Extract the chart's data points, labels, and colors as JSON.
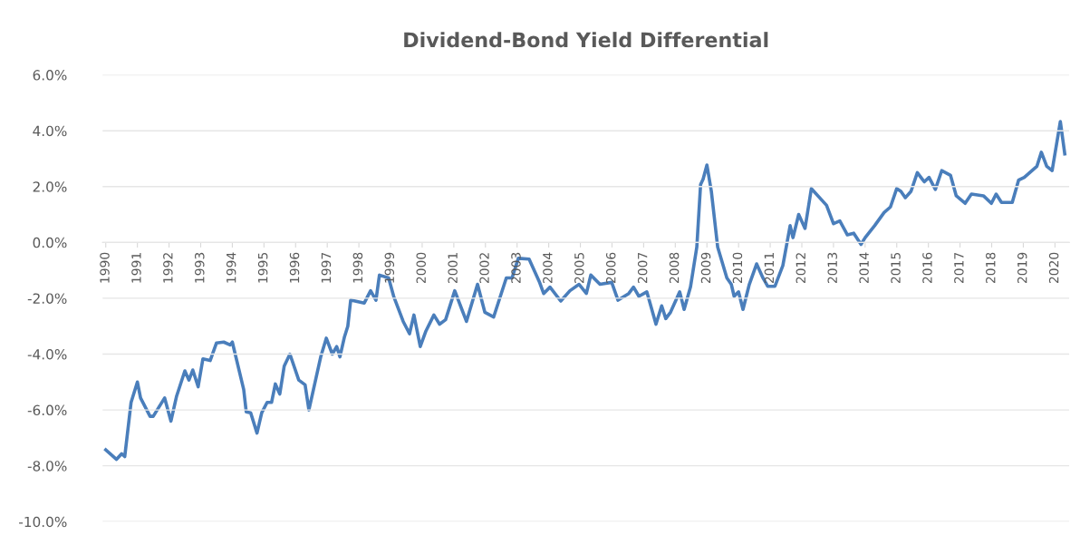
{
  "chart_data": {
    "type": "line",
    "title": "Dividend-Bond Yield Differential",
    "x": [
      1990.0,
      1990.34,
      1990.5,
      1990.6,
      1990.8,
      1991.0,
      1991.1,
      1991.4,
      1991.5,
      1991.86,
      1992.06,
      1992.24,
      1992.5,
      1992.63,
      1992.75,
      1992.92,
      1993.07,
      1993.3,
      1993.5,
      1993.73,
      1993.93,
      1994.0,
      1994.36,
      1994.44,
      1994.58,
      1994.78,
      1994.93,
      1995.1,
      1995.24,
      1995.36,
      1995.5,
      1995.64,
      1995.82,
      1996.1,
      1996.3,
      1996.42,
      1996.65,
      1996.8,
      1996.97,
      1997.16,
      1997.3,
      1997.4,
      1997.54,
      1997.65,
      1997.74,
      1997.88,
      1998.17,
      1998.37,
      1998.54,
      1998.65,
      1998.94,
      1999.1,
      1999.4,
      1999.6,
      1999.74,
      1999.94,
      2000.12,
      2000.37,
      2000.55,
      2000.74,
      2001.03,
      2001.4,
      2001.75,
      2001.98,
      2002.26,
      2002.66,
      2002.84,
      2003.04,
      2003.38,
      2003.7,
      2003.84,
      2004.04,
      2004.38,
      2004.67,
      2004.96,
      2005.19,
      2005.33,
      2005.62,
      2005.99,
      2006.19,
      2006.53,
      2006.68,
      2006.85,
      2007.1,
      2007.39,
      2007.57,
      2007.7,
      2007.85,
      2008.14,
      2008.28,
      2008.48,
      2008.68,
      2008.8,
      2008.88,
      2009.0,
      2009.14,
      2009.34,
      2009.63,
      2009.77,
      2009.86,
      2010.0,
      2010.14,
      2010.34,
      2010.57,
      2010.77,
      2010.92,
      2011.15,
      2011.4,
      2011.63,
      2011.72,
      2011.9,
      2012.1,
      2012.3,
      2012.78,
      2013.0,
      2013.2,
      2013.44,
      2013.64,
      2013.87,
      2014.0,
      2014.3,
      2014.6,
      2014.8,
      2015.0,
      2015.13,
      2015.27,
      2015.45,
      2015.65,
      2015.87,
      2016.02,
      2016.22,
      2016.42,
      2016.7,
      2016.88,
      2017.16,
      2017.36,
      2017.74,
      2017.99,
      2018.14,
      2018.31,
      2018.65,
      2018.85,
      2019.03,
      2019.43,
      2019.57,
      2019.74,
      2019.91,
      2020.17,
      2020.31
    ],
    "series": [
      {
        "color": "#4a7ebb",
        "values": [
          -7.43,
          -7.77,
          -7.57,
          -7.67,
          -5.73,
          -5.0,
          -5.57,
          -6.23,
          -6.23,
          -5.57,
          -6.4,
          -5.5,
          -4.6,
          -4.93,
          -4.57,
          -5.17,
          -4.17,
          -4.23,
          -3.6,
          -3.57,
          -3.67,
          -3.57,
          -5.27,
          -6.07,
          -6.1,
          -6.83,
          -6.1,
          -5.73,
          -5.73,
          -5.07,
          -5.43,
          -4.43,
          -4.0,
          -4.93,
          -5.1,
          -6.0,
          -4.83,
          -4.07,
          -3.43,
          -4.0,
          -3.73,
          -4.1,
          -3.4,
          -3.0,
          -2.07,
          -2.1,
          -2.17,
          -1.73,
          -2.07,
          -1.17,
          -1.27,
          -1.93,
          -2.83,
          -3.27,
          -2.6,
          -3.73,
          -3.17,
          -2.6,
          -2.93,
          -2.77,
          -1.73,
          -2.83,
          -1.5,
          -2.5,
          -2.67,
          -1.27,
          -1.27,
          -0.57,
          -0.6,
          -1.4,
          -1.83,
          -1.6,
          -2.1,
          -1.73,
          -1.5,
          -1.83,
          -1.17,
          -1.5,
          -1.43,
          -2.07,
          -1.83,
          -1.6,
          -1.93,
          -1.77,
          -2.93,
          -2.27,
          -2.73,
          -2.5,
          -1.77,
          -2.4,
          -1.6,
          -0.17,
          2.07,
          2.27,
          2.77,
          1.83,
          -0.17,
          -1.27,
          -1.5,
          -1.93,
          -1.77,
          -2.4,
          -1.5,
          -0.77,
          -1.27,
          -1.57,
          -1.57,
          -0.83,
          0.6,
          0.17,
          1.0,
          0.5,
          1.93,
          1.33,
          0.67,
          0.77,
          0.27,
          0.33,
          -0.07,
          0.17,
          0.6,
          1.07,
          1.27,
          1.93,
          1.83,
          1.6,
          1.83,
          2.5,
          2.17,
          2.33,
          1.9,
          2.57,
          2.4,
          1.67,
          1.4,
          1.73,
          1.67,
          1.4,
          1.73,
          1.43,
          1.43,
          2.23,
          2.33,
          2.73,
          3.23,
          2.73,
          2.57,
          4.33,
          3.17
        ]
      }
    ],
    "xlim": [
      1989.9,
      2020.45
    ],
    "xticks": [
      1990,
      1991,
      1992,
      1993,
      1994,
      1995,
      1996,
      1997,
      1998,
      1999,
      2000,
      2001,
      2002,
      2003,
      2004,
      2005,
      2006,
      2007,
      2008,
      2009,
      2010,
      2011,
      2012,
      2013,
      2014,
      2015,
      2016,
      2017,
      2018,
      2019,
      2020
    ],
    "ylim": [
      -10,
      6
    ],
    "yticks": [
      {
        "value": -10,
        "label": "-10.0%"
      },
      {
        "value": -8,
        "label": "-8.0%"
      },
      {
        "value": -6,
        "label": "-6.0%"
      },
      {
        "value": -4,
        "label": "-4.0%"
      },
      {
        "value": -2,
        "label": "-2.0%"
      },
      {
        "value": 0,
        "label": "0.0%"
      },
      {
        "value": 2,
        "label": "2.0%"
      },
      {
        "value": 4,
        "label": "4.0%"
      },
      {
        "value": 6,
        "label": "6.0%"
      }
    ],
    "grid": "y",
    "legend": false,
    "marker": "none",
    "line_style": "solid"
  }
}
